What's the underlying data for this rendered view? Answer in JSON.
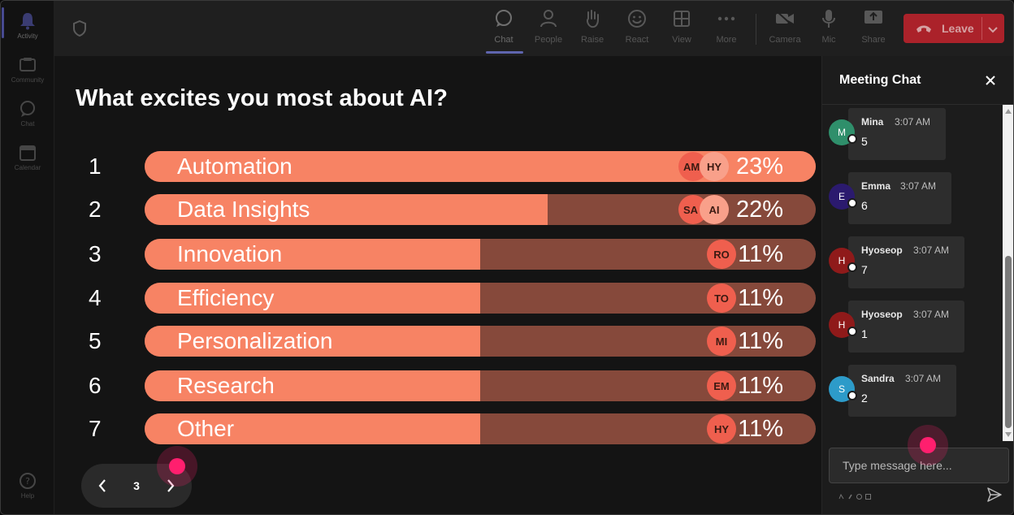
{
  "rail": {
    "items": [
      {
        "label": "Activity",
        "icon": "bell-icon"
      },
      {
        "label": "Community",
        "icon": "community-icon"
      },
      {
        "label": "Chat",
        "icon": "chat-icon"
      },
      {
        "label": "Calendar",
        "icon": "calendar-icon"
      }
    ],
    "help": {
      "label": "Help",
      "icon": "help-icon"
    }
  },
  "toolbar": {
    "buttons": [
      {
        "label": "Chat",
        "icon": "chat-bubble-icon"
      },
      {
        "label": "People",
        "icon": "people-icon"
      },
      {
        "label": "Raise",
        "icon": "raise-hand-icon"
      },
      {
        "label": "React",
        "icon": "smiley-icon"
      },
      {
        "label": "View",
        "icon": "grid-icon"
      },
      {
        "label": "More",
        "icon": "more-icon"
      },
      {
        "label": "Camera",
        "icon": "camera-off-icon"
      },
      {
        "label": "Mic",
        "icon": "mic-icon"
      },
      {
        "label": "Share",
        "icon": "share-icon"
      }
    ],
    "leave_label": "Leave"
  },
  "poll": {
    "title": "What excites you most about AI?",
    "options": [
      {
        "num": "1",
        "label": "Automation",
        "percent": 23,
        "percent_label": "23%",
        "avatars": [
          "AM",
          "HY"
        ]
      },
      {
        "num": "2",
        "label": "Data Insights",
        "percent": 22,
        "percent_label": "22%",
        "avatars": [
          "SA",
          "AI"
        ]
      },
      {
        "num": "3",
        "label": "Innovation",
        "percent": 11,
        "percent_label": "11%",
        "avatars": [
          "RO"
        ]
      },
      {
        "num": "4",
        "label": "Efficiency",
        "percent": 11,
        "percent_label": "11%",
        "avatars": [
          "TO"
        ]
      },
      {
        "num": "5",
        "label": "Personalization",
        "percent": 11,
        "percent_label": "11%",
        "avatars": [
          "MI"
        ]
      },
      {
        "num": "6",
        "label": "Research",
        "percent": 11,
        "percent_label": "11%",
        "avatars": [
          "EM"
        ]
      },
      {
        "num": "7",
        "label": "Other",
        "percent": 11,
        "percent_label": "11%",
        "avatars": [
          "HY"
        ]
      }
    ],
    "bar_fill_fraction": [
      1.0,
      0.6,
      0.5,
      0.5,
      0.5,
      0.5,
      0.5
    ],
    "page": "3"
  },
  "chat": {
    "title": "Meeting Chat",
    "messages": [
      {
        "initial": "M",
        "name": "Mina",
        "time": "3:07 AM",
        "text": "5",
        "color": "#2f8f6b"
      },
      {
        "initial": "E",
        "name": "Emma",
        "time": "3:07 AM",
        "text": "6",
        "color": "#2b1a6e"
      },
      {
        "initial": "H",
        "name": "Hyoseop",
        "time": "3:07 AM",
        "text": "7",
        "color": "#8f1a1a"
      },
      {
        "initial": "H",
        "name": "Hyoseop",
        "time": "3:07 AM",
        "text": "1",
        "color": "#8f1a1a"
      },
      {
        "initial": "S",
        "name": "Sandra",
        "time": "3:07 AM",
        "text": "2",
        "color": "#2d9bc9"
      }
    ],
    "input_placeholder": "Type message here..."
  },
  "colors": {
    "bar_fill": "#f78364",
    "bar_track": "#86493b",
    "leave": "#c4232c",
    "accent": "#7b83eb",
    "cursor": "#ff1f6e"
  }
}
